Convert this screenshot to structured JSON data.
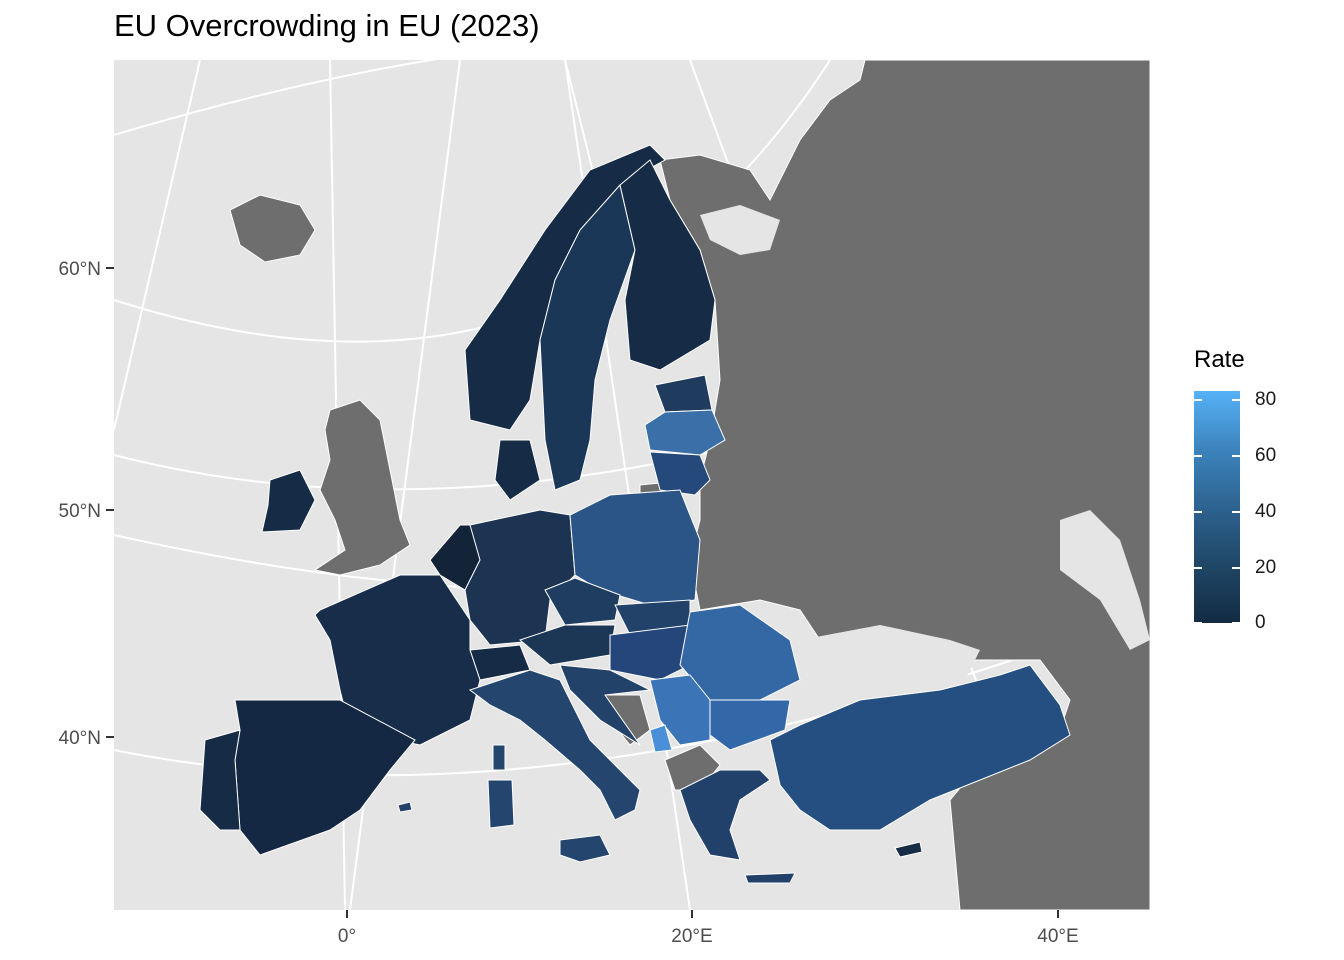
{
  "title": "EU Overcrowding in EU (2023)",
  "legend": {
    "title": "Rate",
    "ticks": [
      "80",
      "60",
      "40",
      "20",
      "0"
    ],
    "low_color": "#132b43",
    "high_color": "#56b1f7",
    "range": [
      0,
      82
    ]
  },
  "axes": {
    "y_labels": [
      "60°N",
      "50°N",
      "40°N"
    ],
    "x_labels": [
      "0°",
      "20°E",
      "40°E"
    ]
  },
  "colors": {
    "panel_background": "#e5e5e5",
    "no_data_land": "#6e6e6e",
    "graticule": "#ffffff",
    "border": "#ffffff"
  }
}
